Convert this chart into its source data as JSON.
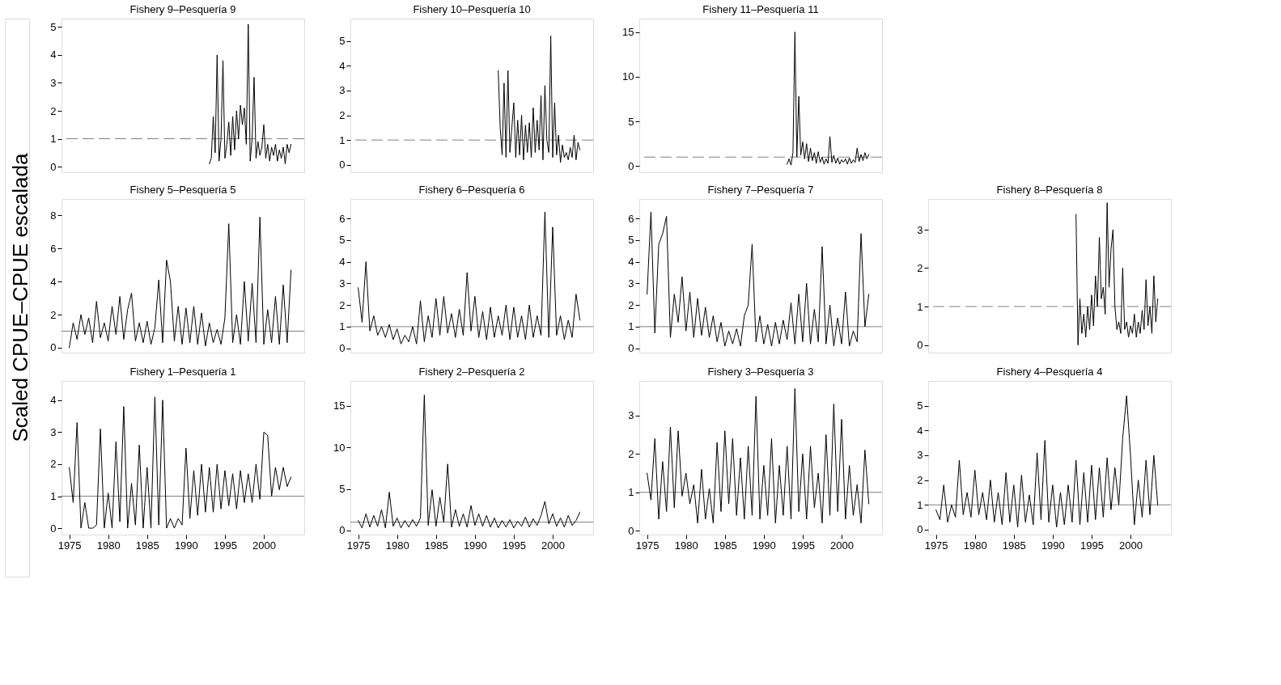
{
  "chart_data": [
    {
      "type": "line",
      "title": "Fishery 9–Pesquería  9",
      "xlim": [
        1974,
        2005.2
      ],
      "xticks": [
        1975,
        1980,
        1985,
        1990,
        1995,
        2000
      ],
      "ylim": [
        -0.2,
        5.3
      ],
      "yticks": [
        0,
        1,
        2,
        3,
        4,
        5
      ],
      "tick_labels": "y",
      "ref_lines": [
        {
          "axis": "y",
          "value": 1,
          "color": "#808080",
          "line_style": "dashed"
        }
      ],
      "x": [
        1993,
        1993.25,
        1993.5,
        1993.75,
        1994,
        1994.25,
        1994.5,
        1994.75,
        1995,
        1995.25,
        1995.5,
        1995.75,
        1996,
        1996.25,
        1996.5,
        1996.75,
        1997,
        1997.25,
        1997.5,
        1997.75,
        1998,
        1998.25,
        1998.5,
        1998.75,
        1999,
        1999.25,
        1999.5,
        1999.75,
        2000,
        2000.25,
        2000.5,
        2000.75,
        2001,
        2001.25,
        2001.5,
        2001.75,
        2002,
        2002.25,
        2002.5,
        2002.75,
        2003,
        2003.25,
        2003.5
      ],
      "series": [
        {
          "color": "#000000",
          "values": [
            0.1,
            0.3,
            1.8,
            0.5,
            4.0,
            0.2,
            1.0,
            3.8,
            0.3,
            0.8,
            1.6,
            0.4,
            1.8,
            0.6,
            2.0,
            1.0,
            2.2,
            1.5,
            2.1,
            0.8,
            5.1,
            0.2,
            1.0,
            3.2,
            0.3,
            0.9,
            0.4,
            0.7,
            1.5,
            0.3,
            0.8,
            0.2,
            0.7,
            0.4,
            0.8,
            0.2,
            0.6,
            0.3,
            0.7,
            0.1,
            0.8,
            0.5,
            0.8
          ]
        }
      ]
    },
    {
      "type": "line",
      "title": "Fishery 10–Pesquería  10",
      "xlim": [
        1974,
        2005.2
      ],
      "xticks": [
        1975,
        1980,
        1985,
        1990,
        1995,
        2000
      ],
      "ylim": [
        -0.3,
        5.9
      ],
      "yticks": [
        0,
        1,
        2,
        3,
        4,
        5
      ],
      "tick_labels": "y",
      "ref_lines": [
        {
          "axis": "y",
          "value": 1,
          "color": "#808080",
          "line_style": "dashed"
        }
      ],
      "x": [
        1993,
        1993.25,
        1993.5,
        1993.75,
        1994,
        1994.25,
        1994.5,
        1994.75,
        1995,
        1995.25,
        1995.5,
        1995.75,
        1996,
        1996.25,
        1996.5,
        1996.75,
        1997,
        1997.25,
        1997.5,
        1997.75,
        1998,
        1998.25,
        1998.5,
        1998.75,
        1999,
        1999.25,
        1999.5,
        1999.75,
        2000,
        2000.25,
        2000.5,
        2000.75,
        2001,
        2001.25,
        2001.5,
        2001.75,
        2002,
        2002.25,
        2002.5,
        2002.75,
        2003,
        2003.25,
        2003.5
      ],
      "series": [
        {
          "color": "#000000",
          "values": [
            3.8,
            1.5,
            0.4,
            3.3,
            0.3,
            3.8,
            0.5,
            1.5,
            2.5,
            0.3,
            1.8,
            0.4,
            2.0,
            0.2,
            1.6,
            0.5,
            1.7,
            0.3,
            2.3,
            0.5,
            1.8,
            0.6,
            2.8,
            0.2,
            3.2,
            1.0,
            0.5,
            5.2,
            0.3,
            2.5,
            0.4,
            1.2,
            0.1,
            0.8,
            0.3,
            0.5,
            0.2,
            0.7,
            0.3,
            1.2,
            0.2,
            0.9,
            0.6
          ]
        }
      ]
    },
    {
      "type": "line",
      "title": "Fishery 11–Pesquería  11",
      "xlim": [
        1974,
        2005.2
      ],
      "xticks": [
        1975,
        1980,
        1985,
        1990,
        1995,
        2000
      ],
      "ylim": [
        -0.7,
        16.5
      ],
      "yticks": [
        0,
        5,
        10,
        15
      ],
      "tick_labels": "y",
      "ref_lines": [
        {
          "axis": "y",
          "value": 1,
          "color": "#808080",
          "line_style": "dashed"
        }
      ],
      "x": [
        1993,
        1993.25,
        1993.5,
        1993.75,
        1994,
        1994.25,
        1994.5,
        1994.75,
        1995,
        1995.25,
        1995.5,
        1995.75,
        1996,
        1996.25,
        1996.5,
        1996.75,
        1997,
        1997.25,
        1997.5,
        1997.75,
        1998,
        1998.25,
        1998.5,
        1998.75,
        1999,
        1999.25,
        1999.5,
        1999.75,
        2000,
        2000.25,
        2000.5,
        2000.75,
        2001,
        2001.25,
        2001.5,
        2001.75,
        2002,
        2002.25,
        2002.5,
        2002.75,
        2003,
        2003.25,
        2003.5
      ],
      "series": [
        {
          "color": "#000000",
          "values": [
            0.2,
            0.8,
            0.1,
            1.5,
            15.0,
            1.0,
            7.8,
            1.2,
            2.7,
            0.8,
            2.5,
            0.5,
            2.0,
            0.6,
            1.5,
            0.3,
            1.6,
            0.4,
            1.0,
            0.2,
            0.8,
            0.3,
            3.3,
            0.4,
            1.2,
            0.3,
            0.9,
            0.2,
            0.7,
            0.4,
            0.8,
            0.2,
            0.9,
            0.3,
            0.7,
            0.4,
            2.0,
            0.5,
            1.3,
            0.6,
            1.5,
            0.8,
            1.3
          ]
        }
      ]
    },
    {
      "type": "line",
      "title": "Fishery 5–Pesquería  5",
      "ylabel": "Scaled CPUE–CPUE escalada",
      "xlim": [
        1974,
        2005.2
      ],
      "xticks": [
        1975,
        1980,
        1985,
        1990,
        1995,
        2000
      ],
      "ylim": [
        -0.3,
        9
      ],
      "yticks": [
        0,
        2,
        4,
        6,
        8
      ],
      "tick_labels": "y",
      "ref_lines": [
        {
          "axis": "y",
          "value": 1,
          "color": "#808080",
          "line_style": "solid"
        }
      ],
      "x": [
        1975,
        1975.5,
        1976,
        1976.5,
        1977,
        1977.5,
        1978,
        1978.5,
        1979,
        1979.5,
        1980,
        1980.5,
        1981,
        1981.5,
        1982,
        1982.5,
        1983,
        1983.5,
        1984,
        1984.5,
        1985,
        1985.5,
        1986,
        1986.5,
        1987,
        1987.5,
        1988,
        1988.5,
        1989,
        1989.5,
        1990,
        1990.5,
        1991,
        1991.5,
        1992,
        1992.5,
        1993,
        1993.5,
        1994,
        1994.5,
        1995,
        1995.5,
        1996,
        1996.5,
        1997,
        1997.5,
        1998,
        1998.5,
        1999,
        1999.5,
        2000,
        2000.5,
        2001,
        2001.5,
        2002,
        2002.5,
        2003,
        2003.5
      ],
      "series": [
        {
          "color": "#000000",
          "values": [
            0,
            1.5,
            0.5,
            2.0,
            0.8,
            1.8,
            0.3,
            2.8,
            0.6,
            1.5,
            0.4,
            2.5,
            0.8,
            3.1,
            0.5,
            2.3,
            3.3,
            0.4,
            1.5,
            0.3,
            1.6,
            0.2,
            1.2,
            4.1,
            0.3,
            5.3,
            4.0,
            0.4,
            2.5,
            0.2,
            2.4,
            0.3,
            2.5,
            0.2,
            2.1,
            0.1,
            1.5,
            0.3,
            1.1,
            0.2,
            1.8,
            7.5,
            0.3,
            2.0,
            0.2,
            4.0,
            0.4,
            3.9,
            0.3,
            7.9,
            0.2,
            2.3,
            0.3,
            3.1,
            0.2,
            3.8,
            0.3,
            4.7
          ]
        }
      ]
    },
    {
      "type": "line",
      "title": "Fishery 6–Pesquería  6",
      "xlim": [
        1974,
        2005.2
      ],
      "xticks": [
        1975,
        1980,
        1985,
        1990,
        1995,
        2000
      ],
      "ylim": [
        -0.2,
        6.9
      ],
      "yticks": [
        0,
        1,
        2,
        3,
        4,
        5,
        6
      ],
      "tick_labels": "y",
      "ref_lines": [
        {
          "axis": "y",
          "value": 1,
          "color": "#808080",
          "line_style": "solid"
        }
      ],
      "x": [
        1975,
        1975.5,
        1976,
        1976.5,
        1977,
        1977.5,
        1978,
        1978.5,
        1979,
        1979.5,
        1980,
        1980.5,
        1981,
        1981.5,
        1982,
        1982.5,
        1983,
        1983.5,
        1984,
        1984.5,
        1985,
        1985.5,
        1986,
        1986.5,
        1987,
        1987.5,
        1988,
        1988.5,
        1989,
        1989.5,
        1990,
        1990.5,
        1991,
        1991.5,
        1992,
        1992.5,
        1993,
        1993.5,
        1994,
        1994.5,
        1995,
        1995.5,
        1996,
        1996.5,
        1997,
        1997.5,
        1998,
        1998.5,
        1999,
        1999.5,
        2000,
        2000.5,
        2001,
        2001.5,
        2002,
        2002.5,
        2003,
        2003.5
      ],
      "series": [
        {
          "color": "#000000",
          "values": [
            2.8,
            1.2,
            4.0,
            0.8,
            1.5,
            0.6,
            1.0,
            0.5,
            1.1,
            0.4,
            0.9,
            0.2,
            0.6,
            0.3,
            1.0,
            0.2,
            2.2,
            0.3,
            1.5,
            0.5,
            2.3,
            0.6,
            2.4,
            0.7,
            1.6,
            0.5,
            1.8,
            0.6,
            3.5,
            0.8,
            2.4,
            0.5,
            1.7,
            0.4,
            1.9,
            0.5,
            1.5,
            0.6,
            2.0,
            0.4,
            1.9,
            0.5,
            1.5,
            0.4,
            2.0,
            0.5,
            1.5,
            0.6,
            6.3,
            0.5,
            5.6,
            0.6,
            1.5,
            0.4,
            1.3,
            0.5,
            2.5,
            1.3
          ]
        }
      ]
    },
    {
      "type": "line",
      "title": "Fishery 7–Pesquería  7",
      "xlim": [
        1974,
        2005.2
      ],
      "xticks": [
        1975,
        1980,
        1985,
        1990,
        1995,
        2000
      ],
      "ylim": [
        -0.2,
        6.9
      ],
      "yticks": [
        0,
        1,
        2,
        3,
        4,
        5,
        6
      ],
      "tick_labels": "y",
      "ref_lines": [
        {
          "axis": "y",
          "value": 1,
          "color": "#808080",
          "line_style": "solid"
        }
      ],
      "x": [
        1975,
        1975.5,
        1976,
        1976.5,
        1977,
        1977.5,
        1978,
        1978.5,
        1979,
        1979.5,
        1980,
        1980.5,
        1981,
        1981.5,
        1982,
        1982.5,
        1983,
        1983.5,
        1984,
        1984.5,
        1985,
        1985.5,
        1986,
        1986.5,
        1987,
        1987.5,
        1988,
        1988.5,
        1989,
        1989.5,
        1990,
        1990.5,
        1991,
        1991.5,
        1992,
        1992.5,
        1993,
        1993.5,
        1994,
        1994.5,
        1995,
        1995.5,
        1996,
        1996.5,
        1997,
        1997.5,
        1998,
        1998.5,
        1999,
        1999.5,
        2000,
        2000.5,
        2001,
        2001.5,
        2002,
        2002.5,
        2003,
        2003.5
      ],
      "series": [
        {
          "color": "#000000",
          "values": [
            2.5,
            6.3,
            0.7,
            4.8,
            5.3,
            6.1,
            0.5,
            2.5,
            1.2,
            3.3,
            0.8,
            2.6,
            0.5,
            2.3,
            0.6,
            1.9,
            0.5,
            1.5,
            0.3,
            1.2,
            0.1,
            0.8,
            0.2,
            0.9,
            0.1,
            1.5,
            2.0,
            4.8,
            0.3,
            1.5,
            0.2,
            1.1,
            0.1,
            1.2,
            0.2,
            1.3,
            0.4,
            2.1,
            0.2,
            2.5,
            0.3,
            3.0,
            0.2,
            1.8,
            0.3,
            4.7,
            0.2,
            2.0,
            0.1,
            1.4,
            0.2,
            2.6,
            0.1,
            0.8,
            0.3,
            5.3,
            1.0,
            2.5
          ]
        }
      ]
    },
    {
      "type": "line",
      "title": "Fishery 8–Pesquería  8",
      "xlim": [
        1974,
        2005.2
      ],
      "xticks": [
        1975,
        1980,
        1985,
        1990,
        1995,
        2000
      ],
      "ylim": [
        -0.2,
        3.8
      ],
      "yticks": [
        0,
        1,
        2,
        3
      ],
      "tick_labels": "y",
      "ref_lines": [
        {
          "axis": "y",
          "value": 1,
          "color": "#808080",
          "line_style": "dashed"
        }
      ],
      "x": [
        1993,
        1993.25,
        1993.5,
        1993.75,
        1994,
        1994.25,
        1994.5,
        1994.75,
        1995,
        1995.25,
        1995.5,
        1995.75,
        1996,
        1996.25,
        1996.5,
        1996.75,
        1997,
        1997.25,
        1997.5,
        1997.75,
        1998,
        1998.25,
        1998.5,
        1998.75,
        1999,
        1999.25,
        1999.5,
        1999.75,
        2000,
        2000.25,
        2000.5,
        2000.75,
        2001,
        2001.25,
        2001.5,
        2001.75,
        2002,
        2002.25,
        2002.5,
        2002.75,
        2003,
        2003.25,
        2003.5
      ],
      "series": [
        {
          "color": "#000000",
          "values": [
            3.4,
            0.0,
            1.2,
            0.3,
            0.8,
            0.2,
            1.0,
            0.4,
            1.3,
            0.5,
            1.8,
            1.0,
            2.8,
            1.2,
            1.5,
            0.8,
            3.7,
            1.5,
            2.5,
            3.0,
            1.0,
            0.4,
            0.6,
            0.3,
            2.0,
            0.4,
            0.6,
            0.2,
            0.5,
            0.3,
            0.8,
            0.2,
            0.6,
            0.3,
            0.9,
            0.4,
            1.7,
            0.5,
            1.0,
            0.3,
            1.8,
            0.6,
            1.2
          ]
        }
      ]
    },
    {
      "type": "line",
      "title": "Fishery 1–Pesquería  1",
      "xlim": [
        1974,
        2005.2
      ],
      "xticks": [
        1975,
        1980,
        1985,
        1990,
        1995,
        2000
      ],
      "ylim": [
        -0.2,
        4.6
      ],
      "yticks": [
        0,
        1,
        2,
        3,
        4
      ],
      "ref_lines": [
        {
          "axis": "y",
          "value": 1,
          "color": "#808080",
          "line_style": "solid"
        }
      ],
      "x": [
        1975,
        1975.5,
        1976,
        1976.5,
        1977,
        1977.5,
        1978,
        1978.5,
        1979,
        1979.5,
        1980,
        1980.5,
        1981,
        1981.5,
        1982,
        1982.5,
        1983,
        1983.5,
        1984,
        1984.5,
        1985,
        1985.5,
        1986,
        1986.5,
        1987,
        1987.5,
        1988,
        1988.5,
        1989,
        1989.5,
        1990,
        1990.5,
        1991,
        1991.5,
        1992,
        1992.5,
        1993,
        1993.5,
        1994,
        1994.5,
        1995,
        1995.5,
        1996,
        1996.5,
        1997,
        1997.5,
        1998,
        1998.5,
        1999,
        1999.5,
        2000,
        2000.5,
        2001,
        2001.5,
        2002,
        2002.5,
        2003,
        2003.5
      ],
      "series": [
        {
          "color": "#000000",
          "values": [
            1.9,
            0.8,
            3.3,
            0.0,
            0.8,
            0.0,
            0.0,
            0.1,
            3.1,
            0.0,
            1.1,
            0.0,
            2.7,
            0.2,
            3.8,
            0.0,
            1.4,
            0.1,
            2.6,
            0.0,
            1.9,
            0.0,
            4.1,
            0.1,
            4.0,
            0.0,
            0.3,
            0.0,
            0.3,
            0.1,
            2.5,
            0.3,
            1.8,
            0.4,
            2.0,
            0.5,
            1.9,
            0.5,
            2.0,
            0.6,
            1.8,
            0.7,
            1.7,
            0.6,
            1.8,
            0.8,
            1.7,
            0.8,
            2.0,
            0.9,
            3.0,
            2.9,
            1.0,
            1.9,
            1.2,
            1.9,
            1.3,
            1.6
          ]
        }
      ]
    },
    {
      "type": "line",
      "title": "Fishery 2–Pesquería  2",
      "xlim": [
        1974,
        2005.2
      ],
      "xticks": [
        1975,
        1980,
        1985,
        1990,
        1995,
        2000
      ],
      "ylim": [
        -0.5,
        18
      ],
      "yticks": [
        0,
        5,
        10,
        15
      ],
      "ref_lines": [
        {
          "axis": "y",
          "value": 1,
          "color": "#808080",
          "line_style": "solid"
        }
      ],
      "x": [
        1975,
        1975.5,
        1976,
        1976.5,
        1977,
        1977.5,
        1978,
        1978.5,
        1979,
        1979.5,
        1980,
        1980.5,
        1981,
        1981.5,
        1982,
        1982.5,
        1983,
        1983.5,
        1984,
        1984.5,
        1985,
        1985.5,
        1986,
        1986.5,
        1987,
        1987.5,
        1988,
        1988.5,
        1989,
        1989.5,
        1990,
        1990.5,
        1991,
        1991.5,
        1992,
        1992.5,
        1993,
        1993.5,
        1994,
        1994.5,
        1995,
        1995.5,
        1996,
        1996.5,
        1997,
        1997.5,
        1998,
        1998.5,
        1999,
        1999.5,
        2000,
        2000.5,
        2001,
        2001.5,
        2002,
        2002.5,
        2003,
        2003.5
      ],
      "series": [
        {
          "color": "#000000",
          "values": [
            1.2,
            0.3,
            2.0,
            0.4,
            1.8,
            0.5,
            2.5,
            0.3,
            4.6,
            0.5,
            1.5,
            0.3,
            1.2,
            0.4,
            1.3,
            0.5,
            1.5,
            16.3,
            0.6,
            4.9,
            0.5,
            4.0,
            1.0,
            8.0,
            0.4,
            2.5,
            0.5,
            2.0,
            0.4,
            3.0,
            0.6,
            2.0,
            0.5,
            1.8,
            0.4,
            1.5,
            0.3,
            1.2,
            0.4,
            1.3,
            0.3,
            1.1,
            0.5,
            1.6,
            0.4,
            1.4,
            0.6,
            1.8,
            3.5,
            0.8,
            2.0,
            0.5,
            1.5,
            0.4,
            1.8,
            0.6,
            1.2,
            2.2
          ]
        }
      ]
    },
    {
      "type": "line",
      "title": "Fishery 3–Pesquería  3",
      "xlim": [
        1974,
        2005.2
      ],
      "xticks": [
        1975,
        1980,
        1985,
        1990,
        1995,
        2000
      ],
      "ylim": [
        -0.1,
        3.9
      ],
      "yticks": [
        0,
        1,
        2,
        3
      ],
      "ref_lines": [
        {
          "axis": "y",
          "value": 1,
          "color": "#808080",
          "line_style": "solid"
        }
      ],
      "x": [
        1975,
        1975.5,
        1976,
        1976.5,
        1977,
        1977.5,
        1978,
        1978.5,
        1979,
        1979.5,
        1980,
        1980.5,
        1981,
        1981.5,
        1982,
        1982.5,
        1983,
        1983.5,
        1984,
        1984.5,
        1985,
        1985.5,
        1986,
        1986.5,
        1987,
        1987.5,
        1988,
        1988.5,
        1989,
        1989.5,
        1990,
        1990.5,
        1991,
        1991.5,
        1992,
        1992.5,
        1993,
        1993.5,
        1994,
        1994.5,
        1995,
        1995.5,
        1996,
        1996.5,
        1997,
        1997.5,
        1998,
        1998.5,
        1999,
        1999.5,
        2000,
        2000.5,
        2001,
        2001.5,
        2002,
        2002.5,
        2003,
        2003.5
      ],
      "series": [
        {
          "color": "#000000",
          "values": [
            1.5,
            0.8,
            2.4,
            0.3,
            1.8,
            0.5,
            2.7,
            0.6,
            2.6,
            0.9,
            1.5,
            0.7,
            1.2,
            0.2,
            1.6,
            0.3,
            1.1,
            0.2,
            2.3,
            0.5,
            2.6,
            0.7,
            2.4,
            0.4,
            1.9,
            0.3,
            2.2,
            0.4,
            3.5,
            0.3,
            1.7,
            0.4,
            2.4,
            0.2,
            1.7,
            0.4,
            2.2,
            0.3,
            3.7,
            0.5,
            2.0,
            0.3,
            2.2,
            0.6,
            1.5,
            0.2,
            2.5,
            0.4,
            3.3,
            0.5,
            2.9,
            0.3,
            1.7,
            0.4,
            1.2,
            0.2,
            2.1,
            0.7
          ]
        }
      ]
    },
    {
      "type": "line",
      "title": "Fishery 4–Pesquería  4",
      "xlim": [
        1974,
        2005.2
      ],
      "xticks": [
        1975,
        1980,
        1985,
        1990,
        1995,
        2000
      ],
      "ylim": [
        -0.2,
        6
      ],
      "yticks": [
        0,
        1,
        2,
        3,
        4,
        5
      ],
      "ref_lines": [
        {
          "axis": "y",
          "value": 1,
          "color": "#808080",
          "line_style": "solid"
        }
      ],
      "x": [
        1975,
        1975.5,
        1976,
        1976.5,
        1977,
        1977.5,
        1978,
        1978.5,
        1979,
        1979.5,
        1980,
        1980.5,
        1981,
        1981.5,
        1982,
        1982.5,
        1983,
        1983.5,
        1984,
        1984.5,
        1985,
        1985.5,
        1986,
        1986.5,
        1987,
        1987.5,
        1988,
        1988.5,
        1989,
        1989.5,
        1990,
        1990.5,
        1991,
        1991.5,
        1992,
        1992.5,
        1993,
        1993.5,
        1994,
        1994.5,
        1995,
        1995.5,
        1996,
        1996.5,
        1997,
        1997.5,
        1998,
        1998.5,
        1999,
        1999.5,
        2000,
        2000.5,
        2001,
        2001.5,
        2002,
        2002.5,
        2003,
        2003.5
      ],
      "series": [
        {
          "color": "#000000",
          "values": [
            0.8,
            0.4,
            1.8,
            0.3,
            1.0,
            0.5,
            2.8,
            0.6,
            1.5,
            0.5,
            2.4,
            0.6,
            1.5,
            0.4,
            2.0,
            0.3,
            1.5,
            0.2,
            2.3,
            0.3,
            1.8,
            0.1,
            2.2,
            0.3,
            1.4,
            0.2,
            3.1,
            0.4,
            3.6,
            0.3,
            1.8,
            0.1,
            1.5,
            0.2,
            1.8,
            0.3,
            2.8,
            0.2,
            2.3,
            0.3,
            2.6,
            0.4,
            2.5,
            0.5,
            2.9,
            0.8,
            2.5,
            1.0,
            3.7,
            5.4,
            3.0,
            0.2,
            2.0,
            0.5,
            2.8,
            0.6,
            3.0,
            1.0
          ]
        }
      ]
    }
  ]
}
